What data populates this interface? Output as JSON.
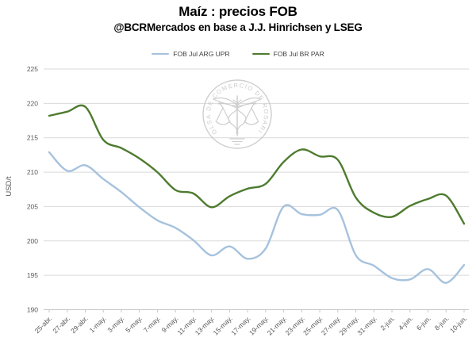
{
  "header": {
    "title": "Maíz : precios FOB",
    "subtitle": "@BCRMercados en base a J.J. Hinrichsen y LSEG"
  },
  "watermark": {
    "ring_text": "BOLSA DE COMERCIO DE ROSARIO",
    "color": "#c9c9c9"
  },
  "colors": {
    "grid": "#d9d9d9",
    "axis": "#c6c6c6",
    "tick_label": "#595959",
    "legend_text": "#3f3f3f",
    "arg_series": "#a6c2dd",
    "br_series": "#4e7b2e"
  },
  "chart_data": {
    "type": "line",
    "title": "Maíz : precios FOB",
    "subtitle": "@BCRMercados en base a J.J. Hinrichsen y LSEG",
    "ylabel": "USD/t",
    "ylim": [
      190,
      225
    ],
    "ytick_step": 5,
    "yticks": [
      190,
      195,
      200,
      205,
      210,
      215,
      220,
      225
    ],
    "grid": true,
    "legend_position": "top",
    "smoothed_lines": true,
    "categories": [
      "25-abr.",
      "27-abr.",
      "29-abr.",
      "1-may.",
      "3-may.",
      "5-may.",
      "7-may.",
      "9-may.",
      "11-may.",
      "13-may.",
      "15-may.",
      "17-may.",
      "19-may.",
      "21-may.",
      "23-may.",
      "25-may.",
      "27-may.",
      "29-may.",
      "31-may.",
      "2-jun.",
      "4-jun.",
      "6-jun.",
      "8-jun.",
      "10-jun."
    ],
    "series": [
      {
        "name": "FOB Jul ARG UPR",
        "color": "#a6c2dd",
        "values": [
          212.9,
          210.2,
          211.0,
          209.0,
          207.1,
          204.9,
          203.0,
          201.9,
          200.1,
          197.9,
          199.2,
          197.4,
          198.9,
          205.0,
          203.9,
          203.8,
          204.5,
          197.9,
          196.4,
          194.6,
          194.4,
          195.9,
          193.9,
          196.5
        ]
      },
      {
        "name": "FOB Jul BR PAR",
        "color": "#4e7b2e",
        "values": [
          218.2,
          218.8,
          219.5,
          214.7,
          213.5,
          212.0,
          210.0,
          207.4,
          206.9,
          204.9,
          206.5,
          207.6,
          208.3,
          211.5,
          213.3,
          212.3,
          211.8,
          206.3,
          204.1,
          203.5,
          205.1,
          206.1,
          206.6,
          202.5
        ]
      }
    ]
  }
}
